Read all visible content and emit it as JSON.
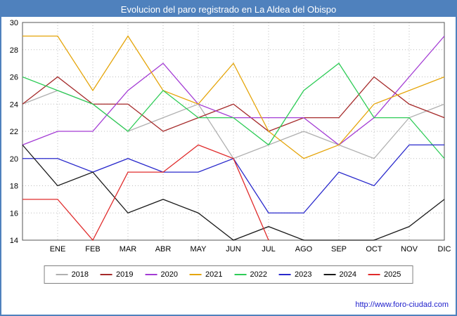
{
  "title": "Evolucion del paro registrado en La Aldea del Obispo",
  "footer": {
    "url": "http://www.foro-ciudad.com"
  },
  "colors": {
    "titlebar_bg": "#4f81bd",
    "titlebar_text": "#ffffff",
    "page_border": "#4f81bd",
    "grid": "#bdbdbd",
    "plot_border": "#555555",
    "tick_text": "#000000",
    "link": "#2222cc"
  },
  "chart_data": {
    "type": "line",
    "title": "Evolucion del paro registrado en La Aldea del Obispo",
    "xlabel": "",
    "ylabel": "",
    "x_labels": [
      "ENE",
      "FEB",
      "MAR",
      "ABR",
      "MAY",
      "JUN",
      "JUL",
      "AGO",
      "SEP",
      "OCT",
      "NOV",
      "DIC"
    ],
    "note": "each polyline starts with an extra unlabeled point on the left axis edge before ENE",
    "ylim": [
      14,
      30
    ],
    "y_ticks": [
      14,
      16,
      18,
      20,
      22,
      24,
      26,
      28,
      30
    ],
    "grid": true,
    "legend_position": "bottom",
    "series": [
      {
        "name": "2018",
        "color": "#b0b0b0",
        "values": [
          24,
          25,
          24,
          22,
          23,
          24,
          20,
          21,
          22,
          21,
          20,
          23,
          24
        ]
      },
      {
        "name": "2019",
        "color": "#a52a2a",
        "values": [
          24,
          26,
          24,
          24,
          22,
          23,
          24,
          22,
          23,
          23,
          26,
          24,
          23
        ]
      },
      {
        "name": "2020",
        "color": "#a33bd4",
        "values": [
          21,
          22,
          22,
          25,
          27,
          24,
          23,
          23,
          23,
          21,
          23,
          26,
          29
        ]
      },
      {
        "name": "2021",
        "color": "#e5a50a",
        "values": [
          29,
          29,
          25,
          29,
          25,
          24,
          27,
          22,
          20,
          21,
          24,
          25,
          26
        ]
      },
      {
        "name": "2022",
        "color": "#2ecc57",
        "values": [
          26,
          25,
          24,
          22,
          25,
          23,
          23,
          21,
          25,
          27,
          23,
          23,
          20
        ]
      },
      {
        "name": "2023",
        "color": "#2929cc",
        "values": [
          20,
          20,
          19,
          20,
          19,
          19,
          20,
          16,
          16,
          19,
          18,
          21,
          21
        ]
      },
      {
        "name": "2024",
        "color": "#1a1a1a",
        "values": [
          21,
          18,
          19,
          16,
          17,
          16,
          14,
          15,
          14,
          14,
          14,
          15,
          17
        ]
      },
      {
        "name": "2025",
        "color": "#e02b2b",
        "values": [
          17,
          17,
          14,
          19,
          19,
          21,
          20,
          14
        ]
      }
    ]
  }
}
